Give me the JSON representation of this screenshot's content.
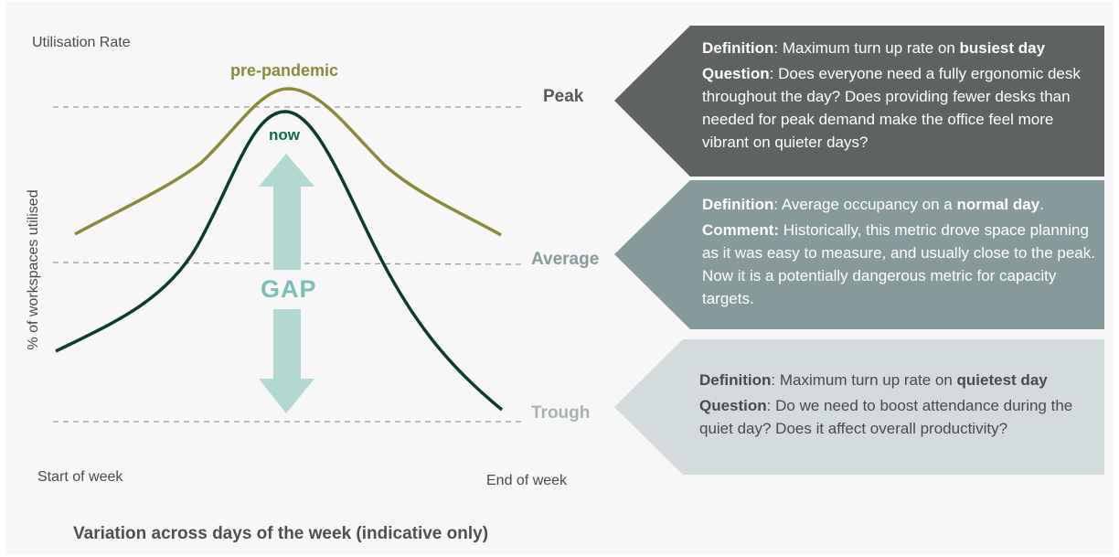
{
  "chart": {
    "y_top_label": "Utilisation Rate",
    "y_axis_title": "% of workspaces utilised",
    "x_start_label": "Start of week",
    "x_end_label": "End of week",
    "caption": "Variation across days of the week (indicative only)",
    "series": {
      "pre_pandemic": {
        "name": "pre-pandemic",
        "color": "#8b8a3b"
      },
      "now": {
        "name": "now",
        "color": "#0b3d2e"
      }
    },
    "gap_label": "GAP",
    "gap_color": "#b2d8d2",
    "levels": {
      "peak": "Peak",
      "average": "Average",
      "trough": "Trough"
    }
  },
  "panels": {
    "peak": {
      "color": "#5e6261",
      "definition_key": "Definition",
      "definition_text": ": Maximum turn up rate on ",
      "definition_emph": "busiest day",
      "second_key": "Question",
      "second_text": ": Does everyone need a fully ergonomic desk throughout the day? Does providing fewer desks than needed for peak demand make the office feel more vibrant on quieter days?"
    },
    "average": {
      "color": "#869a9c",
      "definition_key": "Definition",
      "definition_text": ": Average occupancy on a ",
      "definition_emph": "normal day",
      "definition_end": ".",
      "second_key": "Comment:",
      "second_text": " Historically, this metric drove space planning as it was easy to measure, and usually close to the peak.  Now it is a potentially dangerous metric for capacity targets."
    },
    "trough": {
      "color": "#d3dbdc",
      "definition_key": "Definition",
      "definition_text": ": Maximum turn up rate on ",
      "definition_emph": "quietest day",
      "second_key": "Question",
      "second_text": ": Do we need to boost attendance during the quiet day? Does it affect overall productivity?"
    }
  }
}
